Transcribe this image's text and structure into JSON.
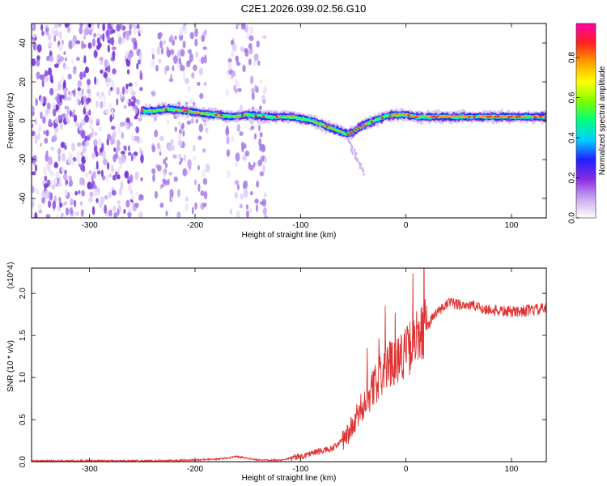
{
  "title": "C2E1.2026.039.02.56.G10",
  "chart_data": [
    {
      "type": "heatmap",
      "xlabel": "Height of straight line (km)",
      "ylabel": "Frequency (Hz)",
      "xlim": [
        -355,
        133
      ],
      "ylim": [
        -50,
        50
      ],
      "xticks": [
        -300,
        -200,
        -100,
        0,
        100
      ],
      "yticks": [
        -40,
        -20,
        0,
        20,
        40
      ],
      "colorbar": {
        "label": "Normalized spectral amplitude",
        "range": [
          0.0,
          0.97
        ],
        "ticks": [
          "0.0",
          "0.2",
          "0.4",
          "0.6",
          "0.8"
        ],
        "colors": [
          "#ffffff",
          "#c8a8f0",
          "#8a2be2",
          "#2020ff",
          "#00d0ff",
          "#00ff80",
          "#80ff00",
          "#ffff00",
          "#ffa000",
          "#ff2020",
          "#ff00aa"
        ]
      },
      "ridge": {
        "x": [
          -250,
          -240,
          -225,
          -210,
          -195,
          -180,
          -165,
          -150,
          -130,
          -110,
          -90,
          -70,
          -55,
          -48,
          -40,
          -30,
          -20,
          -10,
          0,
          10,
          30,
          60,
          90,
          120,
          133
        ],
        "y": [
          5,
          5,
          6,
          5,
          4,
          3,
          2,
          3,
          2,
          2,
          0,
          -4,
          -7,
          -5,
          -2,
          0,
          2,
          3,
          3,
          2,
          2,
          2,
          2,
          2,
          2
        ]
      },
      "noise_bands_x": [
        [
          -355,
          -250
        ],
        [
          -240,
          -188
        ],
        [
          -170,
          -132
        ]
      ]
    },
    {
      "type": "line",
      "xlabel": "Height of straight line (km)",
      "ylabel": "SNR (10 * v/v)",
      "y_multiplier": "(x10^4)",
      "xlim": [
        -355,
        133
      ],
      "ylim": [
        0,
        2.3
      ],
      "xticks": [
        -300,
        -200,
        -100,
        0,
        100
      ],
      "yticks": [
        "0.0",
        "0.5",
        "1.0",
        "1.5",
        "2.0"
      ],
      "series": [
        {
          "color": "#e03030",
          "x": [
            -355,
            -300,
            -250,
            -200,
            -180,
            -160,
            -140,
            -120,
            -100,
            -90,
            -80,
            -70,
            -60,
            -50,
            -40,
            -30,
            -20,
            -10,
            0,
            10,
            20,
            30,
            40,
            60,
            80,
            100,
            120,
            133
          ],
          "y": [
            0.01,
            0.01,
            0.01,
            0.02,
            0.03,
            0.06,
            0.02,
            0.02,
            0.06,
            0.1,
            0.13,
            0.15,
            0.25,
            0.42,
            0.7,
            0.9,
            1.1,
            1.22,
            1.3,
            1.45,
            1.62,
            1.78,
            1.88,
            1.86,
            1.8,
            1.78,
            1.8,
            1.82
          ]
        }
      ]
    }
  ]
}
